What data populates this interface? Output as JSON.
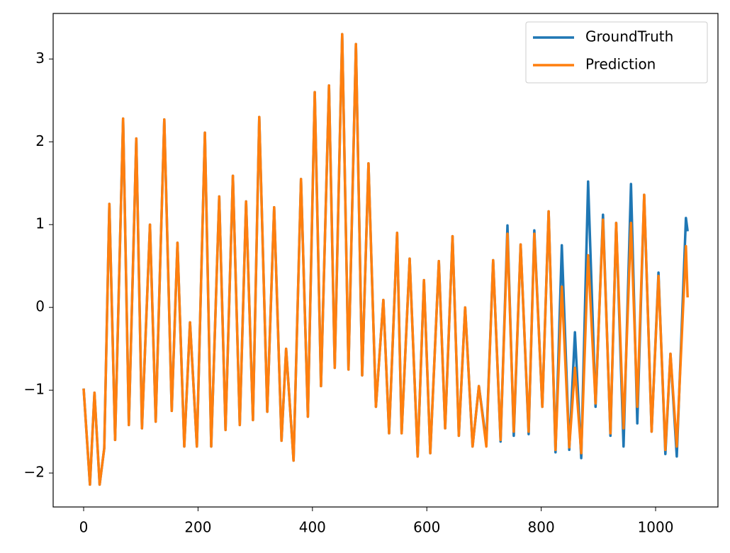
{
  "chart_data": {
    "type": "line",
    "x": [
      0,
      11,
      19,
      28,
      36,
      45,
      55,
      69,
      79,
      92,
      102,
      116,
      126,
      141,
      154,
      164,
      176,
      186,
      198,
      212,
      223,
      237,
      248,
      261,
      273,
      284,
      296,
      307,
      321,
      333,
      346,
      354,
      367,
      380,
      392,
      404,
      415,
      429,
      439,
      452,
      463,
      476,
      487,
      498,
      511,
      524,
      534,
      548,
      556,
      570,
      584,
      595,
      606,
      621,
      632,
      645,
      656,
      667,
      680,
      691,
      704,
      716,
      729,
      741,
      752,
      764,
      778,
      788,
      802,
      813,
      825,
      836,
      849,
      859,
      870,
      882,
      895,
      908,
      921,
      931,
      944,
      957,
      968,
      980,
      993,
      1005,
      1017,
      1026,
      1037,
      1053,
      1056
    ],
    "series": [
      {
        "name": "GroundTruth",
        "color": "#1f77b4",
        "values": [
          -0.98,
          -2.14,
          -1.03,
          -2.14,
          -1.7,
          1.25,
          -1.6,
          2.28,
          -1.42,
          2.04,
          -1.46,
          1.0,
          -1.38,
          2.27,
          -1.25,
          0.78,
          -1.68,
          -0.18,
          -1.68,
          2.11,
          -1.68,
          1.34,
          -1.48,
          1.59,
          -1.42,
          1.28,
          -1.36,
          2.3,
          -1.26,
          1.21,
          -1.61,
          -0.5,
          -1.85,
          1.55,
          -1.32,
          2.6,
          -0.95,
          2.68,
          -0.73,
          3.3,
          -0.75,
          3.18,
          -0.82,
          1.74,
          -1.2,
          0.09,
          -1.52,
          0.9,
          -1.52,
          0.59,
          -1.8,
          0.33,
          -1.76,
          0.56,
          -1.46,
          0.86,
          -1.55,
          0,
          -1.68,
          -0.95,
          -1.63,
          0.57,
          -1.62,
          0.99,
          -1.55,
          0.76,
          -1.53,
          0.93,
          -1.2,
          1.16,
          -1.75,
          0.75,
          -1.72,
          -0.3,
          -1.82,
          1.52,
          -1.2,
          1.12,
          -1.55,
          1.02,
          -1.68,
          1.49,
          -1.4,
          1.36,
          -1.5,
          0.42,
          -1.77,
          -0.56,
          -1.8,
          1.08,
          0.92
        ]
      },
      {
        "name": "Prediction",
        "color": "#ff7f0e",
        "values": [
          -0.98,
          -2.14,
          -1.03,
          -2.14,
          -1.7,
          1.25,
          -1.6,
          2.28,
          -1.42,
          2.04,
          -1.46,
          1.0,
          -1.38,
          2.27,
          -1.25,
          0.78,
          -1.68,
          -0.18,
          -1.68,
          2.11,
          -1.68,
          1.34,
          -1.48,
          1.59,
          -1.42,
          1.28,
          -1.36,
          2.3,
          -1.26,
          1.21,
          -1.61,
          -0.5,
          -1.85,
          1.55,
          -1.32,
          2.6,
          -0.95,
          2.68,
          -0.73,
          3.3,
          -0.75,
          3.18,
          -0.82,
          1.74,
          -1.2,
          0.09,
          -1.52,
          0.9,
          -1.52,
          0.59,
          -1.8,
          0.33,
          -1.76,
          0.56,
          -1.46,
          0.86,
          -1.55,
          0,
          -1.68,
          -0.95,
          -1.68,
          0.57,
          -1.6,
          0.89,
          -1.5,
          0.76,
          -1.5,
          0.89,
          -1.2,
          1.16,
          -1.72,
          0.25,
          -1.69,
          -0.73,
          -1.76,
          0.63,
          -1.16,
          1.06,
          -1.52,
          1.02,
          -1.46,
          1.02,
          -1.2,
          1.36,
          -1.5,
          0.38,
          -1.72,
          -0.56,
          -1.68,
          0.74,
          0.12
        ]
      }
    ],
    "xlim": [
      -53.3,
      1109
    ],
    "ylim": [
      -2.41,
      3.55
    ],
    "xticks": [
      0,
      200,
      400,
      600,
      800,
      1000
    ],
    "yticks": [
      {
        "value": -2,
        "label": "−2"
      },
      {
        "value": -1,
        "label": "−1"
      },
      0,
      1,
      2,
      3
    ],
    "legend": "upper right",
    "grid": false
  }
}
